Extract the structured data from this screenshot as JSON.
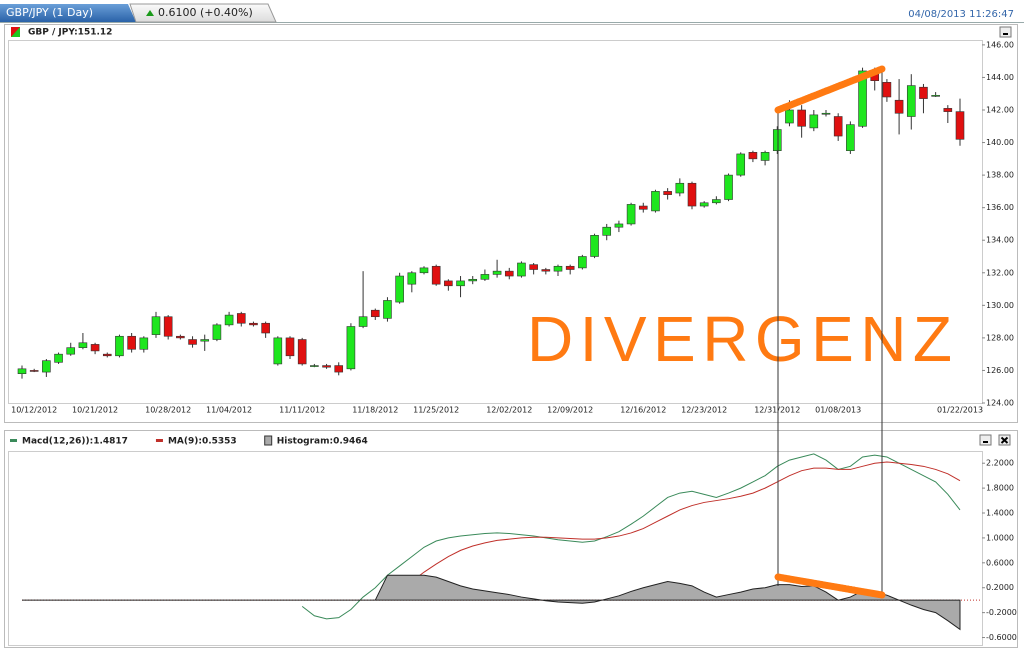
{
  "header": {
    "tab": "GBP/JPY (1 Day)",
    "change": "0.6100 (+0.40%)",
    "timestamp": "04/08/2013 11:26:47"
  },
  "chart_data": [
    {
      "type": "candlestick",
      "title": "GBP / JPY:151.12",
      "annotations": [
        "DIVERGENZ"
      ],
      "up_color": "#1ee61e",
      "down_color": "#e01010",
      "categories": [
        null,
        "10/12/2012",
        null,
        null,
        null,
        null,
        "10/21/2012",
        null,
        null,
        null,
        null,
        null,
        "10/28/2012",
        null,
        null,
        null,
        null,
        "11/04/2012",
        null,
        null,
        null,
        null,
        null,
        "11/11/2012",
        null,
        null,
        null,
        null,
        null,
        "11/18/2012",
        null,
        null,
        null,
        null,
        "11/25/2012",
        null,
        null,
        null,
        null,
        null,
        "12/02/2012",
        null,
        null,
        null,
        null,
        "12/09/2012",
        null,
        null,
        null,
        null,
        null,
        "12/16/2012",
        null,
        null,
        null,
        null,
        "12/23/2012",
        null,
        null,
        null,
        null,
        null,
        "12/31/2012",
        null,
        null,
        null,
        null,
        "01/08/2013",
        null,
        null,
        null,
        null,
        null,
        null,
        null,
        null,
        null,
        "01/22/2013"
      ],
      "open": [
        125.8,
        126.0,
        125.9,
        126.5,
        127.0,
        127.4,
        127.6,
        127.0,
        126.9,
        128.1,
        127.3,
        128.2,
        129.3,
        128.1,
        127.9,
        127.8,
        127.9,
        128.8,
        129.5,
        128.9,
        128.9,
        126.4,
        128.0,
        127.9,
        126.3,
        126.3,
        126.3,
        126.1,
        128.7,
        129.7,
        129.2,
        130.2,
        131.3,
        132.0,
        132.4,
        131.5,
        131.2,
        131.5,
        131.6,
        131.9,
        132.1,
        131.8,
        132.5,
        132.2,
        132.1,
        132.4,
        132.3,
        133.0,
        134.3,
        134.8,
        135.0,
        136.1,
        135.8,
        137.0,
        136.9,
        137.5,
        136.1,
        136.3,
        136.5,
        138.0,
        139.4,
        138.9,
        139.5,
        141.2,
        142.0,
        140.9,
        141.8,
        141.6,
        139.5,
        141.0,
        144.4,
        143.7,
        142.6,
        141.6,
        143.4,
        142.9,
        142.1,
        141.9
      ],
      "high": [
        126.3,
        126.1,
        126.7,
        127.1,
        127.7,
        128.3,
        127.7,
        127.1,
        128.2,
        128.3,
        128.1,
        129.6,
        129.4,
        128.2,
        128.1,
        128.2,
        128.9,
        129.6,
        129.6,
        129.0,
        129.0,
        128.1,
        128.1,
        128.0,
        126.4,
        126.4,
        126.5,
        128.9,
        132.1,
        129.8,
        130.5,
        132.0,
        132.1,
        132.4,
        132.5,
        131.6,
        131.8,
        131.8,
        132.2,
        132.8,
        132.3,
        132.7,
        132.6,
        132.3,
        132.5,
        132.5,
        133.1,
        134.4,
        135.0,
        135.2,
        136.3,
        136.3,
        137.1,
        137.2,
        137.8,
        137.6,
        136.4,
        136.7,
        138.1,
        139.4,
        139.5,
        139.5,
        141.0,
        142.6,
        142.3,
        142.0,
        142.0,
        141.8,
        141.3,
        144.6,
        144.6,
        143.9,
        143.9,
        144.2,
        143.6,
        143.1,
        142.3,
        142.7
      ],
      "low": [
        125.5,
        125.9,
        125.6,
        126.4,
        126.9,
        127.3,
        127.0,
        126.8,
        126.8,
        127.1,
        127.1,
        128.0,
        127.9,
        127.9,
        127.4,
        127.2,
        127.8,
        128.7,
        128.7,
        128.7,
        128.0,
        126.3,
        126.7,
        126.3,
        126.2,
        126.1,
        125.7,
        126.0,
        128.6,
        129.1,
        129.0,
        130.1,
        130.8,
        131.9,
        131.2,
        130.9,
        130.5,
        131.3,
        131.5,
        131.7,
        131.6,
        131.7,
        131.9,
        131.9,
        131.8,
        131.9,
        132.2,
        132.9,
        134.0,
        134.5,
        134.9,
        135.7,
        135.7,
        136.5,
        136.7,
        135.9,
        136.0,
        136.2,
        136.4,
        137.9,
        138.8,
        138.6,
        139.3,
        141.0,
        140.3,
        140.7,
        141.6,
        140.1,
        139.3,
        140.9,
        143.2,
        142.5,
        140.5,
        140.8,
        141.8,
        142.8,
        141.2,
        139.8
      ],
      "close": [
        126.1,
        125.95,
        126.6,
        127.0,
        127.4,
        127.7,
        127.2,
        126.9,
        128.1,
        127.3,
        128.0,
        129.3,
        128.1,
        128.0,
        127.6,
        127.9,
        128.8,
        129.4,
        128.9,
        128.8,
        128.3,
        128.0,
        126.9,
        126.4,
        126.3,
        126.2,
        125.9,
        128.7,
        129.3,
        129.3,
        130.3,
        131.8,
        132.0,
        132.3,
        131.3,
        131.2,
        131.5,
        131.6,
        131.9,
        132.1,
        131.8,
        132.6,
        132.2,
        132.1,
        132.4,
        132.2,
        133.0,
        134.3,
        134.8,
        135.0,
        136.2,
        135.9,
        137.0,
        136.8,
        137.5,
        136.1,
        136.3,
        136.5,
        138.0,
        139.3,
        139.0,
        139.4,
        140.8,
        142.0,
        141.0,
        141.7,
        141.8,
        140.4,
        141.1,
        144.4,
        143.8,
        142.8,
        141.8,
        143.5,
        142.7,
        142.9,
        141.9,
        140.2
      ],
      "ylim": [
        124,
        146.3
      ],
      "yticks": [
        {
          "value": 124,
          "label": "124.00"
        },
        {
          "value": 126,
          "label": "126.00"
        },
        {
          "value": 128,
          "label": "128.00"
        },
        {
          "value": 130,
          "label": "130.00"
        },
        {
          "value": 132,
          "label": "132.00"
        },
        {
          "value": 134,
          "label": "134.00"
        },
        {
          "value": 136,
          "label": "136.00"
        },
        {
          "value": 138,
          "label": "138.00"
        },
        {
          "value": 140,
          "label": "140.00"
        },
        {
          "value": 142,
          "label": "142.00"
        },
        {
          "value": 144,
          "label": "144.00"
        },
        {
          "value": 146,
          "label": "146.00"
        }
      ]
    },
    {
      "type": "line",
      "series": [
        {
          "name": "Macd(12,26)):1.4817",
          "color": "#3a8a5a",
          "type": "line",
          "values": [
            null,
            null,
            null,
            null,
            null,
            null,
            null,
            null,
            null,
            null,
            null,
            null,
            null,
            null,
            null,
            null,
            null,
            null,
            null,
            null,
            null,
            null,
            null,
            -0.1,
            -0.25,
            -0.3,
            -0.28,
            -0.15,
            0.05,
            0.2,
            0.4,
            0.55,
            0.7,
            0.85,
            0.95,
            1.0,
            1.03,
            1.05,
            1.07,
            1.08,
            1.07,
            1.05,
            1.03,
            1.0,
            0.97,
            0.95,
            0.93,
            0.95,
            1.02,
            1.1,
            1.22,
            1.35,
            1.5,
            1.65,
            1.72,
            1.75,
            1.7,
            1.65,
            1.72,
            1.8,
            1.9,
            2.0,
            2.15,
            2.25,
            2.3,
            2.35,
            2.25,
            2.1,
            2.15,
            2.3,
            2.33,
            2.3,
            2.2,
            2.1,
            2.0,
            1.9,
            1.7,
            1.45
          ]
        },
        {
          "name": "MA(9):0.5353",
          "color": "#c0302a",
          "type": "line",
          "values": [
            null,
            null,
            null,
            null,
            null,
            null,
            null,
            null,
            null,
            null,
            null,
            null,
            null,
            null,
            null,
            null,
            null,
            null,
            null,
            null,
            null,
            null,
            null,
            null,
            null,
            null,
            null,
            null,
            null,
            null,
            0.0,
            0.15,
            0.3,
            0.45,
            0.58,
            0.7,
            0.8,
            0.87,
            0.92,
            0.96,
            0.98,
            1.0,
            1.01,
            1.01,
            1.0,
            0.99,
            0.98,
            0.98,
            1.0,
            1.03,
            1.08,
            1.15,
            1.25,
            1.35,
            1.45,
            1.52,
            1.57,
            1.6,
            1.63,
            1.67,
            1.72,
            1.8,
            1.9,
            2.0,
            2.08,
            2.12,
            2.12,
            2.1,
            2.1,
            2.15,
            2.2,
            2.22,
            2.2,
            2.18,
            2.15,
            2.1,
            2.03,
            1.92
          ]
        },
        {
          "name": "Histogram:0.9464",
          "color": "#aaaaaa",
          "type": "area",
          "values": [
            0,
            0,
            0,
            0,
            0,
            0,
            0,
            0,
            0,
            0,
            0,
            0,
            0,
            0,
            0,
            0,
            0,
            0,
            0,
            0,
            0,
            0,
            0,
            0,
            0,
            0,
            0,
            0,
            0,
            0,
            0.4,
            0.4,
            0.4,
            0.4,
            0.37,
            0.3,
            0.23,
            0.18,
            0.15,
            0.12,
            0.09,
            0.05,
            0.02,
            -0.01,
            -0.03,
            -0.04,
            -0.05,
            -0.03,
            0.02,
            0.07,
            0.14,
            0.2,
            0.25,
            0.3,
            0.27,
            0.23,
            0.13,
            0.05,
            0.09,
            0.13,
            0.18,
            0.2,
            0.25,
            0.25,
            0.22,
            0.23,
            0.13,
            0,
            0.05,
            0.15,
            0.13,
            0.08,
            0,
            -0.08,
            -0.15,
            -0.2,
            -0.33,
            -0.47
          ]
        }
      ],
      "ylim": [
        -0.72,
        2.38
      ],
      "yticks": [
        {
          "value": -0.6,
          "label": "-0.6000"
        },
        {
          "value": -0.2,
          "label": "-0.2000"
        },
        {
          "value": 0.2,
          "label": "0.2000"
        },
        {
          "value": 0.6,
          "label": "0.6000"
        },
        {
          "value": 1,
          "label": "1.0000"
        },
        {
          "value": 1.4,
          "label": "1.4000"
        },
        {
          "value": 1.8,
          "label": "1.8000"
        },
        {
          "value": 2.2,
          "label": "2.2000"
        }
      ]
    }
  ]
}
